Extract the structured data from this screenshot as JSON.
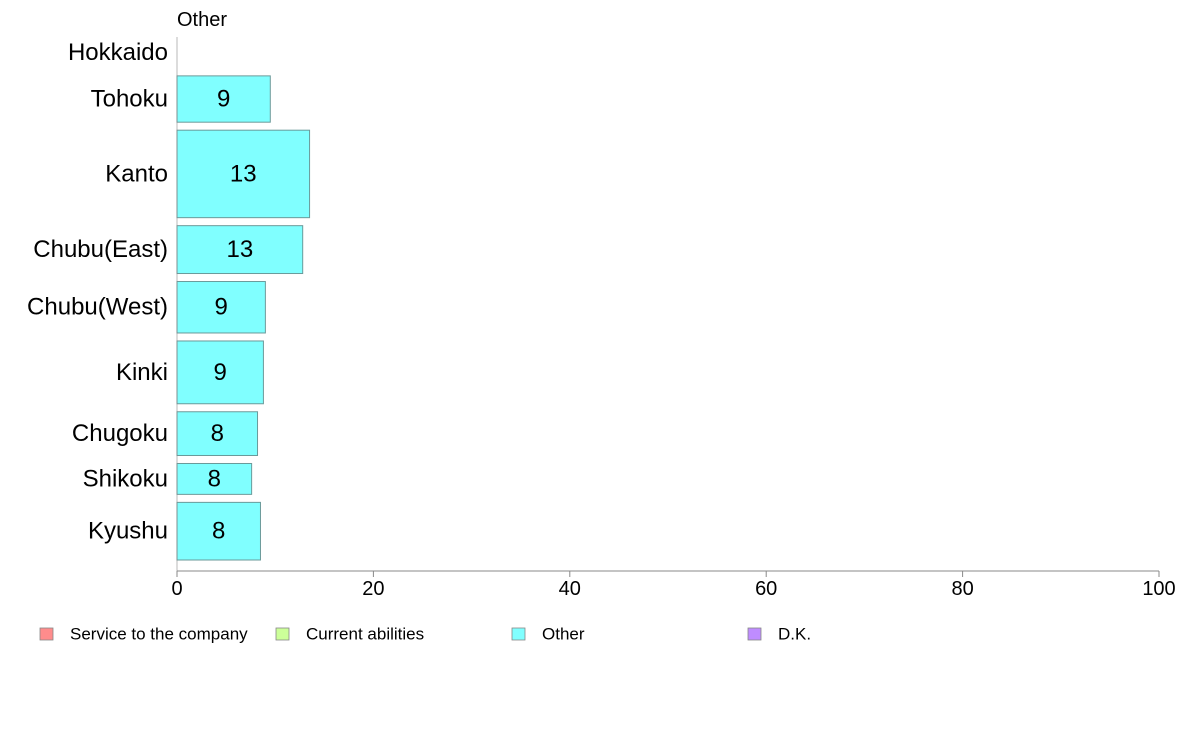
{
  "chart_data": {
    "type": "bar",
    "orientation": "horizontal",
    "title": "Other",
    "categories": [
      "Hokkaido",
      "Tohoku",
      "Kanto",
      "Chubu(East)",
      "Chubu(West)",
      "Kinki",
      "Chugoku",
      "Shikoku",
      "Kyushu"
    ],
    "values": [
      0,
      9.5,
      13.5,
      12.8,
      9,
      8.8,
      8.2,
      7.6,
      8.5
    ],
    "labels": [
      "",
      "9",
      "13",
      "13",
      "9",
      "9",
      "8",
      "8",
      "8"
    ],
    "relative_widths": [
      0.6,
      0.9,
      1.7,
      0.93,
      1.0,
      1.22,
      0.85,
      0.6,
      1.12
    ],
    "xlim": [
      0,
      100
    ],
    "xticks": [
      "0",
      "20",
      "40",
      "60",
      "80",
      "100"
    ],
    "grid": false,
    "legend_position": "bottom",
    "legend": [
      {
        "label": "Service to the company",
        "color": "#ff8c8c"
      },
      {
        "label": "Current abilities",
        "color": "#ccff99"
      },
      {
        "label": "Other",
        "color": "#80ffff"
      },
      {
        "label": "D.K.",
        "color": "#bf8cff"
      }
    ],
    "bar_color": "#80ffff",
    "bar_stroke": "#6a9a9a",
    "axis_color": "#888888"
  }
}
